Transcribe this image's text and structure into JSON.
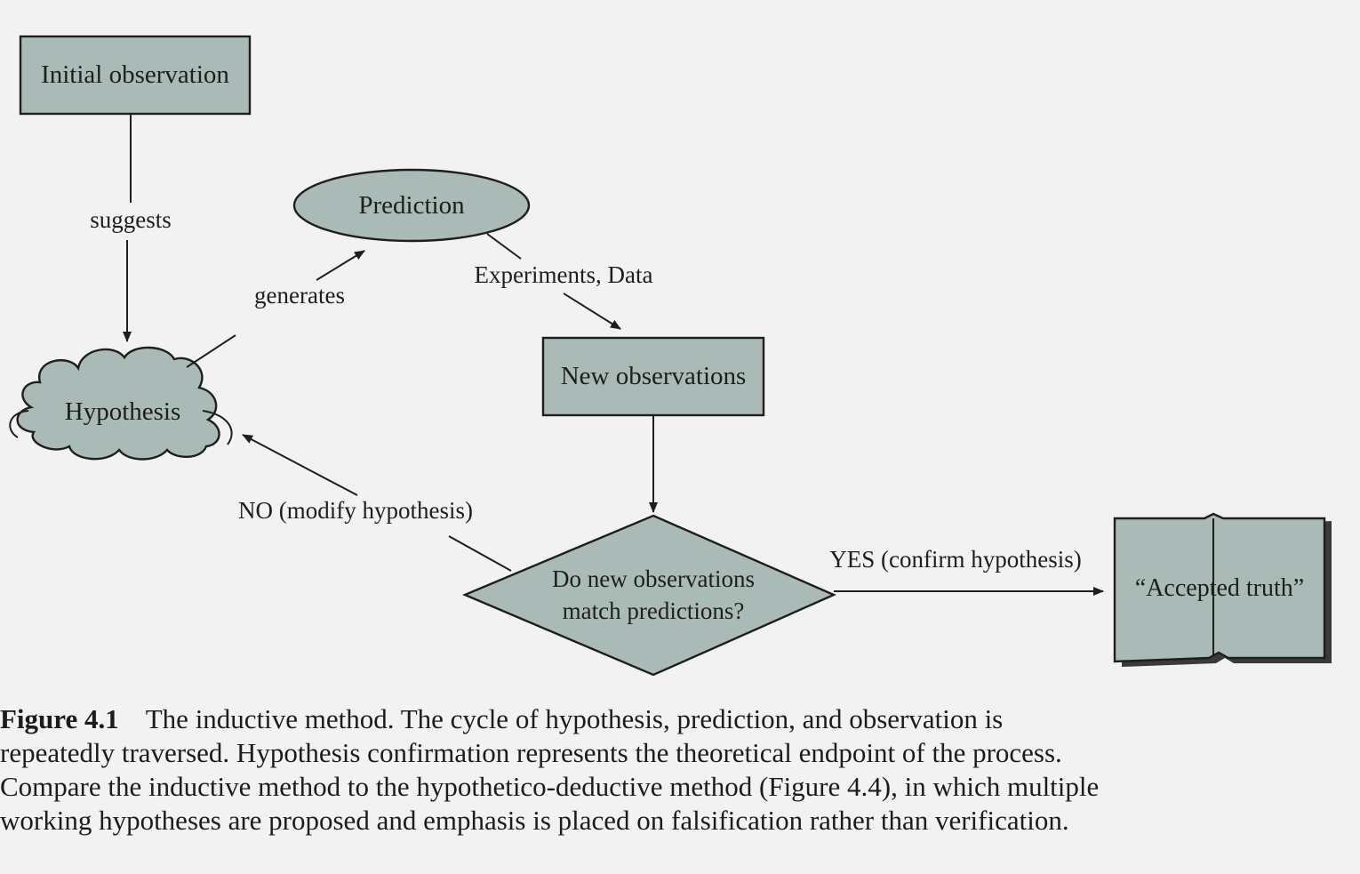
{
  "nodes": {
    "initial_observation": "Initial observation",
    "prediction": "Prediction",
    "hypothesis": "Hypothesis",
    "new_observations": "New observations",
    "decision_line1": "Do new observations",
    "decision_line2": "match predictions?",
    "accepted_truth": "“Accepted truth”"
  },
  "edges": {
    "suggests": "suggests",
    "generates": "generates",
    "experiments_data": "Experiments, Data",
    "no_modify": "NO (modify hypothesis)",
    "yes_confirm": "YES (confirm hypothesis)"
  },
  "caption": {
    "label": "Figure 4.1",
    "text": "The inductive method. The cycle of hypothesis, prediction, and observation is repeatedly traversed. Hypothesis confirmation represents the theoretical endpoint of the process. Compare the inductive method to the hypothetico-deductive method (Figure 4.4), in which multiple working hypotheses are proposed and emphasis is placed on falsification rather than verification."
  },
  "colors": {
    "node_fill": "#a9bab7",
    "stroke": "#1e1e1e",
    "background": "#f2f2f2"
  }
}
